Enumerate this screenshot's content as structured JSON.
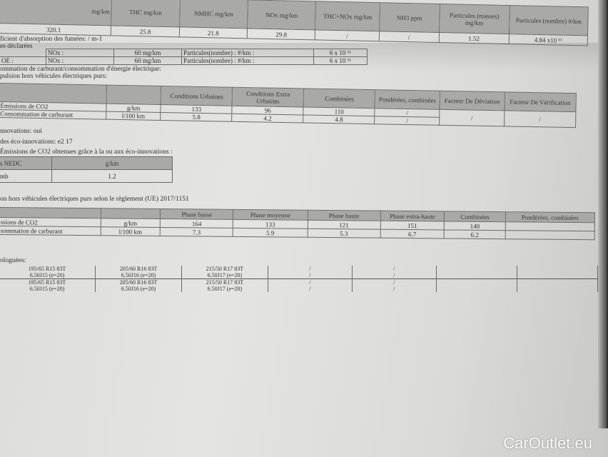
{
  "emissions_table": {
    "headers": [
      "mg/km",
      "THC mg/km",
      "NMHC mg/km",
      "NOx mg/km",
      "THC+NOx mg/km",
      "NH3 ppm",
      "Particules (masses) mg/km",
      "Particules (nombre) #/km"
    ],
    "values": [
      "320.1",
      "25.8",
      "21.8",
      "29.8",
      "/",
      "/",
      "1.52",
      "4.84 x10 ¹¹"
    ]
  },
  "smoke_line": "ficient d'absorption des fumées: / m-1",
  "declared_line": "es déclarées",
  "declared_rows": [
    {
      "prefix": "",
      "nox_label": "NOx :",
      "nox_value": "60 mg/km",
      "pn_label": "Particules(nombre) : #/km :",
      "pn_value": "6 x 10 ¹¹"
    },
    {
      "prefix": "OE   :",
      "nox_label": "NOx :",
      "nox_value": "60 mg/km",
      "pn_label": "Particules(nombre) : #/km :",
      "pn_value": "6 x 10 ¹¹"
    }
  ],
  "consumption_line": "ommation de carburant/consommation d'énergie électrique:",
  "propulsion_line": "pulsion hors véhicules électriques purs:",
  "nedc_table": {
    "headers": [
      "",
      "",
      "Conditions Urbaines",
      "Conditions Extra Urbaines",
      "Combinées",
      "Pondérées, combinées",
      "Facteur De Déviation",
      "Facteur De Vérification"
    ],
    "rows": [
      [
        "Émissions de CO2",
        "g/km",
        "133",
        "96",
        "110",
        "/"
      ],
      [
        "Consommation de carburant",
        "l/100 km",
        "5.8",
        "4.2",
        "4.8",
        "/"
      ]
    ],
    "deviation": "/",
    "verification": "/"
  },
  "eco_line": "nnovations: oui",
  "eco_code_line": "des éco-innovations: e2 17",
  "eco_co2_line": "Émissions de CO2 obtenues grâce à la ou aux éco-innovations :",
  "eco_table": {
    "headers": [
      "s NEDC",
      "g/km"
    ],
    "row": [
      "mb",
      "1.2"
    ]
  },
  "wltp_title": "on hors véhicules électriques purs selon le règlement (UE) 2017/1151",
  "wltp_table": {
    "headers": [
      "",
      "",
      "Phase basse",
      "Phase moyenne",
      "Phase haute",
      "Phase extra-haute",
      "Combinées",
      "Pondérées, combinées"
    ],
    "rows": [
      [
        "ssions de CO2",
        "g/km",
        "164",
        "133",
        "121",
        "151",
        "140",
        ""
      ],
      [
        "sommation de carburant",
        "l/100 km",
        "7.3",
        "5.9",
        "5.3",
        "6.7",
        "6.2",
        ""
      ]
    ]
  },
  "tyres_label": "ologuées:",
  "tyres": [
    [
      [
        "195/65 R15 83T",
        "6.50J15 (e=20)"
      ],
      [
        "205/60 R16 83T",
        "6.50J16 (e=20)"
      ],
      [
        "215/50 R17 83T",
        "6.50J17 (e=20)"
      ],
      [
        "/"
      ],
      [
        "/"
      ]
    ],
    [
      [
        "195/65 R15 83T",
        "6.50J15 (e=20)"
      ],
      [
        "205/60 R16 83T",
        "6.50J16 (e=20)"
      ],
      [
        "215/50 R17 83T",
        "6.50J17 (e=20)"
      ],
      [
        "/"
      ],
      [
        "/"
      ]
    ]
  ],
  "watermark": "CarOutlet.eu"
}
